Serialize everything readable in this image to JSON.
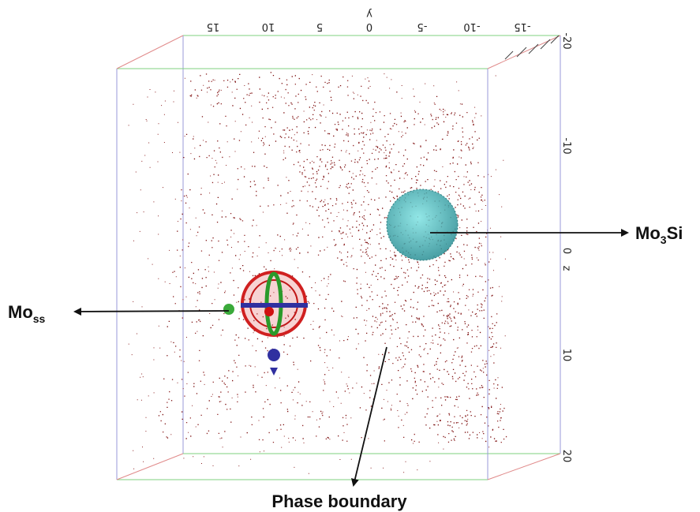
{
  "axes": {
    "y": {
      "title": "y",
      "ticks": [
        "15",
        "10",
        "5",
        "0",
        "-5",
        "-10",
        "-15"
      ]
    },
    "z": {
      "title": "z",
      "ticks": [
        "-20",
        "-10",
        "0",
        "10",
        "20"
      ]
    }
  },
  "annotations": {
    "mo3si": {
      "base": "Mo",
      "subscript": "3",
      "suffix": "Si"
    },
    "moss": {
      "base": "Mo",
      "subscript": "ss"
    },
    "phase_boundary": "Phase boundary"
  }
}
